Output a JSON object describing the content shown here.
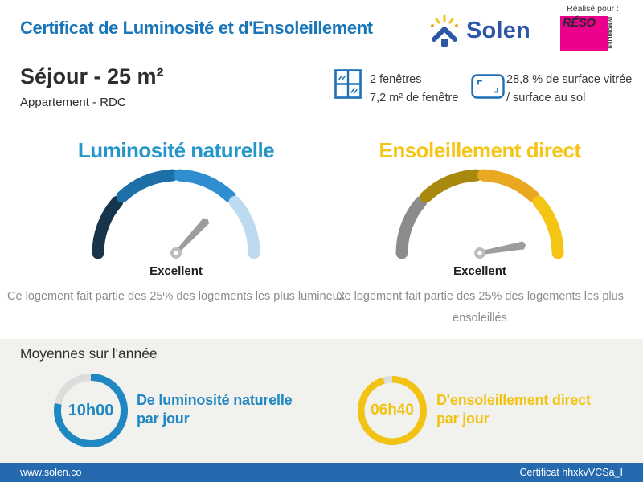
{
  "colors": {
    "title_blue": "#1b76b8",
    "brand_blue": "#2d57a6",
    "icon_blue": "#1d6fb8",
    "partner_magenta": "#ec008c",
    "section_bg": "#f1f1ee",
    "footer_blue": "#2569ae",
    "ring_track": "#dddddd"
  },
  "header": {
    "title": "Certificat de Luminosité et d'Ensoleillement",
    "brand": "Solen",
    "realise_pour": "Réalisé pour :",
    "partner": {
      "name": "RÉSO",
      "sub": "IMMOBILIER"
    }
  },
  "room": {
    "title": "Séjour - 25 m²",
    "subtitle": "Appartement - RDC"
  },
  "windows": {
    "count": "2 fenêtres",
    "area": "7,2 m² de fenêtre",
    "ratio_line1": "28,8 % de surface vitrée",
    "ratio_line2": "/ surface au sol"
  },
  "gauges": [
    {
      "title": "Luminosité naturelle",
      "title_color": "#2496c9",
      "segment_colors": [
        "#17344d",
        "#1d6fa8",
        "#2e8ecf",
        "#bcdaf0"
      ],
      "needle_angle_deg": -47,
      "needle_color": "#9d9d9d",
      "pivot_color": "#bdbdbd",
      "rating": "Excellent",
      "description": "Ce logement fait partie des 25% des logements les plus lumineux"
    },
    {
      "title": "Ensoleillement direct",
      "title_color": "#f5c417",
      "segment_colors": [
        "#8c8c8c",
        "#a8890e",
        "#eaa821",
        "#f4c515"
      ],
      "needle_angle_deg": -10,
      "needle_color": "#9d9d9d",
      "pivot_color": "#bdbdbd",
      "rating": "Excellent",
      "description": "Ce logement fait partie des 25% des logements les plus ensoleillés"
    }
  ],
  "averages": {
    "section_title": "Moyennes sur l'année",
    "items": [
      {
        "value": "10h00",
        "label_line1": "De luminosité naturelle",
        "label_line2": "par jour",
        "color": "#1f87c2",
        "fraction": 0.78
      },
      {
        "value": "06h40",
        "label_line1": "D'ensoleillement direct",
        "label_line2": "par jour",
        "color": "#f2c313",
        "fraction": 0.955
      }
    ]
  },
  "footer": {
    "website": "www.solen.co",
    "certificate": "Certificat hhxkvVCSa_I"
  }
}
